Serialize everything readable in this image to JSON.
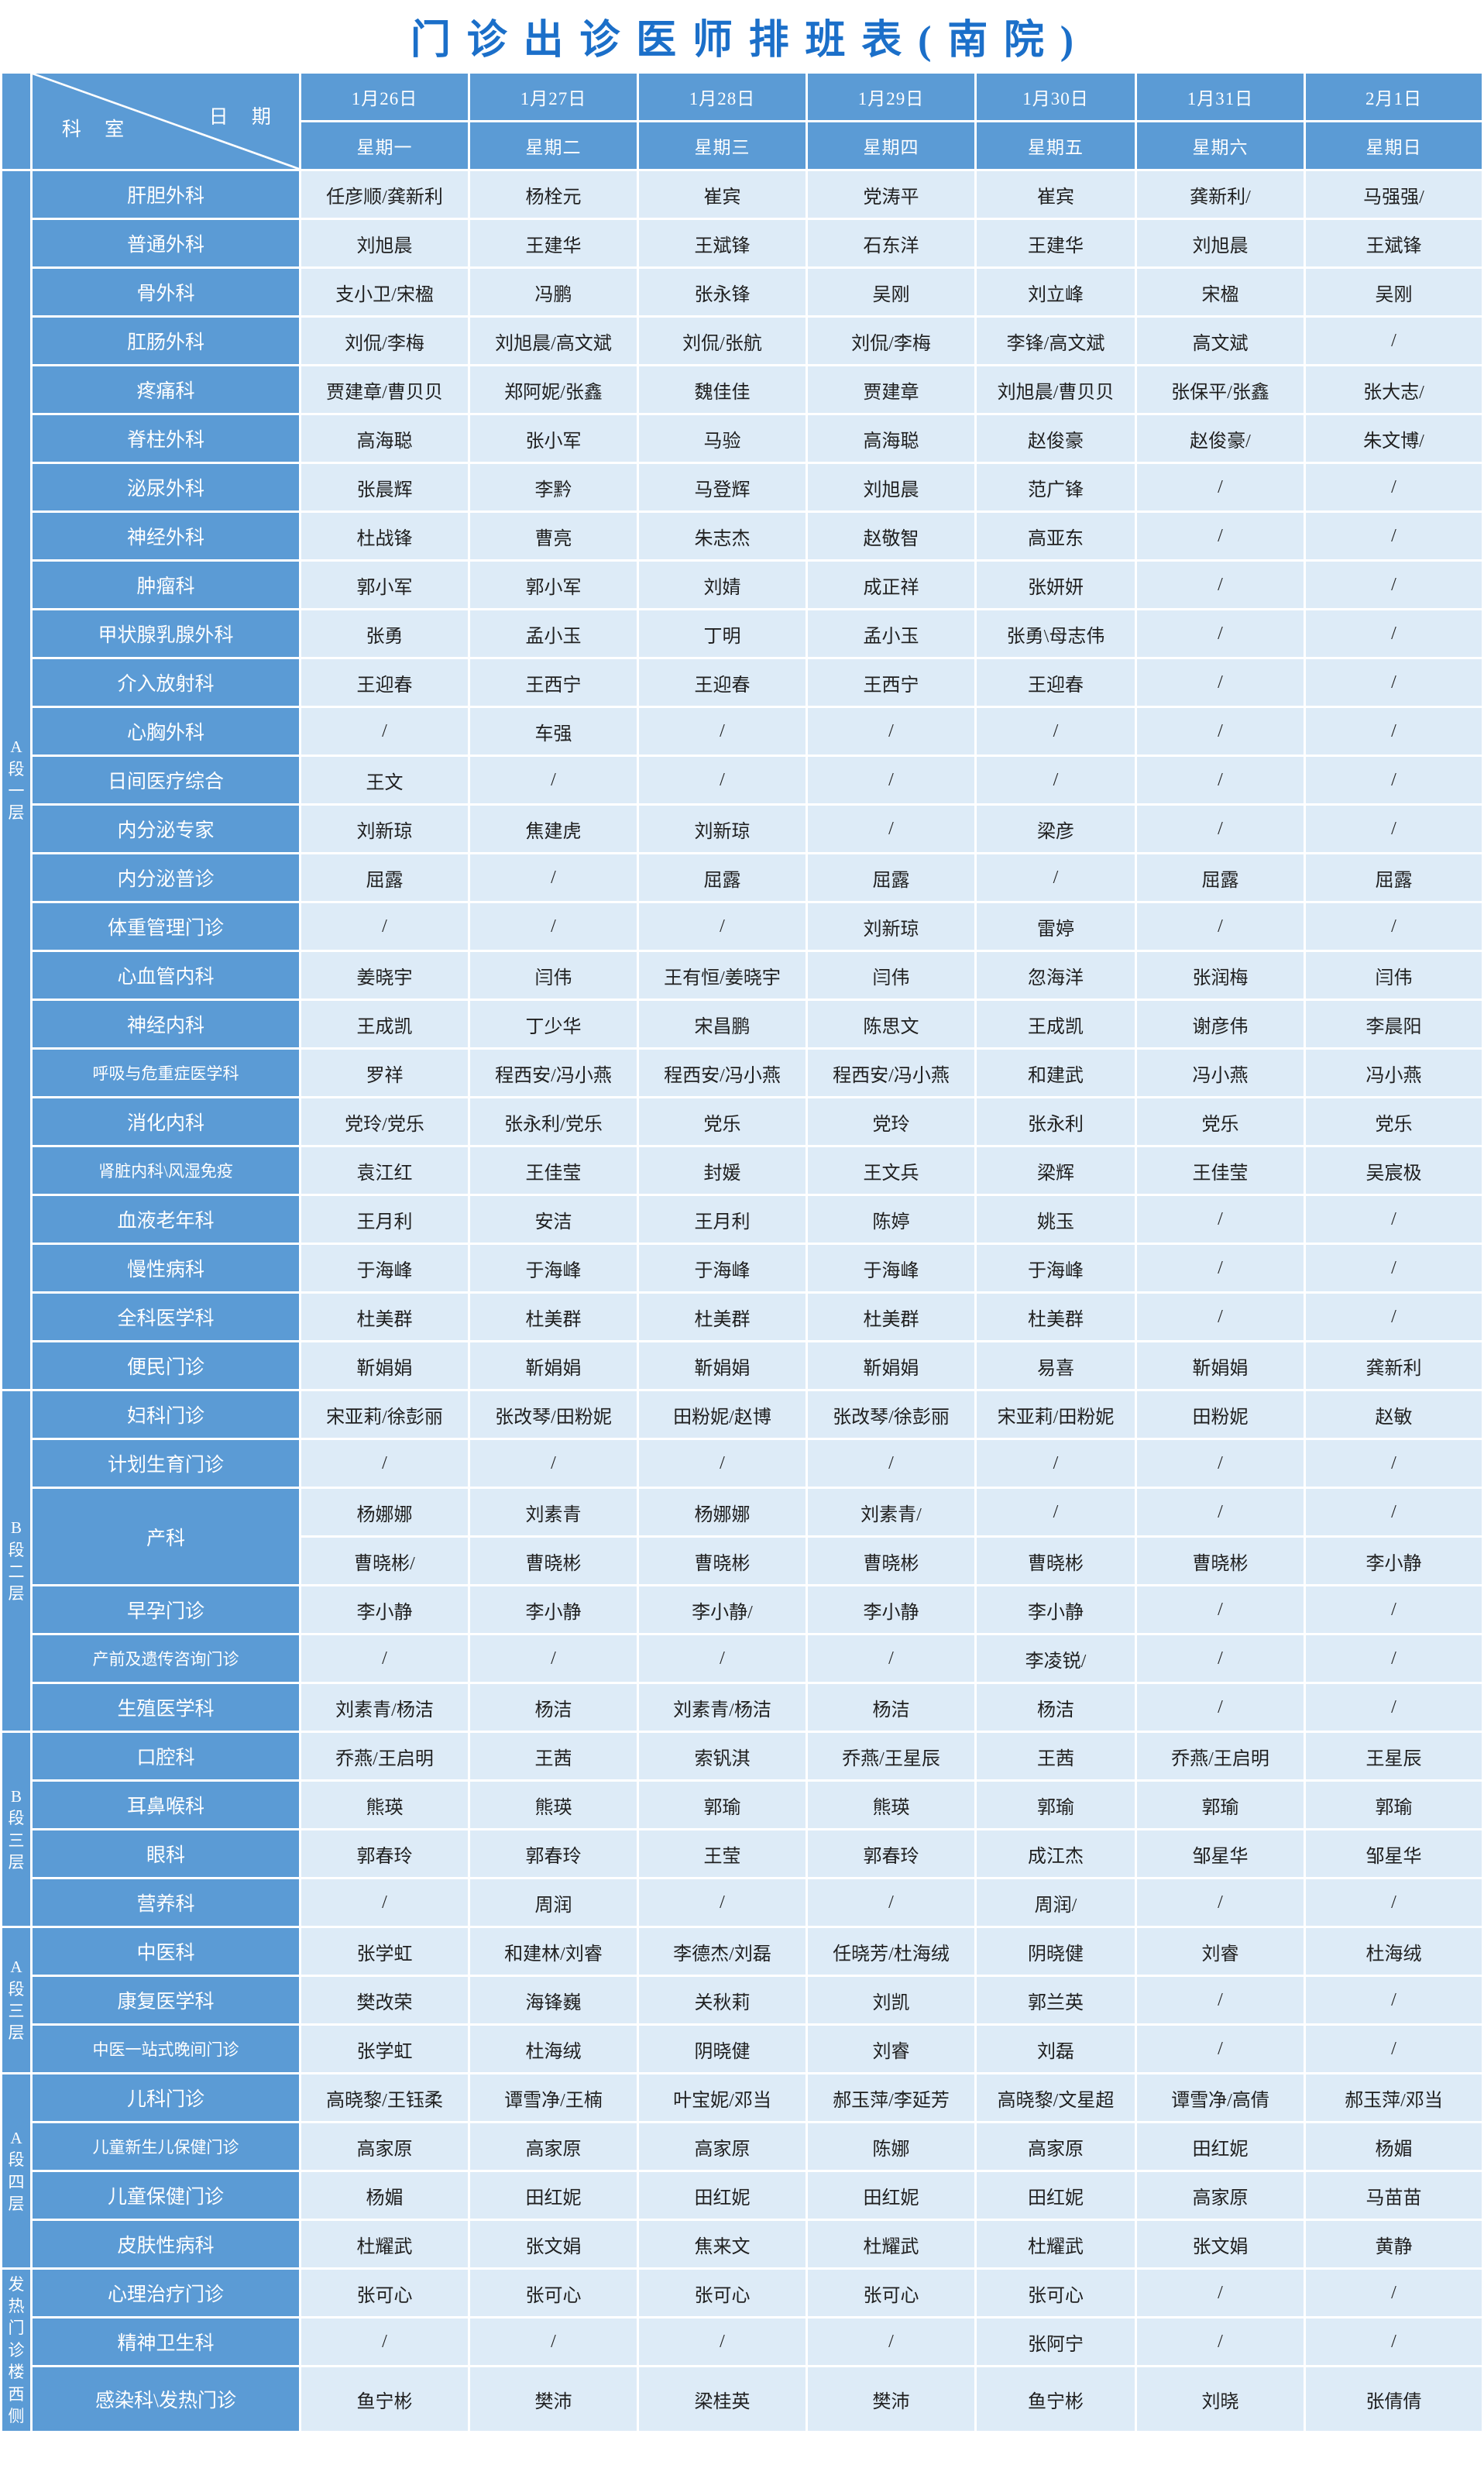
{
  "title": "门诊出诊医师排班表(南院)",
  "colors": {
    "header_blue": "#5b9bd5",
    "cell_light_blue": "#ddebf7",
    "title_blue": "#1b6fc9",
    "grid_white": "#ffffff",
    "text_dark": "#1f1f1f"
  },
  "corner": {
    "left_label": "科 室",
    "right_label": "日 期"
  },
  "columns": [
    {
      "date": "1月26日",
      "weekday": "星期一"
    },
    {
      "date": "1月27日",
      "weekday": "星期二"
    },
    {
      "date": "1月28日",
      "weekday": "星期三"
    },
    {
      "date": "1月29日",
      "weekday": "星期四"
    },
    {
      "date": "1月30日",
      "weekday": "星期五"
    },
    {
      "date": "1月31日",
      "weekday": "星期六"
    },
    {
      "date": "2月1日",
      "weekday": "星期日"
    }
  ],
  "groups": [
    {
      "label": "A段\n一层",
      "rows": [
        {
          "dept": "肝胆外科",
          "cells": [
            "任彦顺/龚新利",
            "杨栓元",
            "崔宾",
            "党涛平",
            "崔宾",
            "龚新利/",
            "马强强/"
          ]
        },
        {
          "dept": "普通外科",
          "cells": [
            "刘旭晨",
            "王建华",
            "王斌锋",
            "石东洋",
            "王建华",
            "刘旭晨",
            "王斌锋"
          ]
        },
        {
          "dept": "骨外科",
          "cells": [
            "支小卫/宋楹",
            "冯鹏",
            "张永锋",
            "吴刚",
            "刘立峰",
            "宋楹",
            "吴刚"
          ]
        },
        {
          "dept": "肛肠外科",
          "cells": [
            "刘侃/李梅",
            "刘旭晨/高文斌",
            "刘侃/张航",
            "刘侃/李梅",
            "李锋/高文斌",
            "高文斌",
            "/"
          ]
        },
        {
          "dept": "疼痛科",
          "cells": [
            "贾建章/曹贝贝",
            "郑阿妮/张鑫",
            "魏佳佳",
            "贾建章",
            "刘旭晨/曹贝贝",
            "张保平/张鑫",
            "张大志/"
          ]
        },
        {
          "dept": "脊柱外科",
          "cells": [
            "高海聪",
            "张小军",
            "马验",
            "高海聪",
            "赵俊豪",
            "赵俊豪/",
            "朱文博/"
          ]
        },
        {
          "dept": "泌尿外科",
          "cells": [
            "张晨辉",
            "李黔",
            "马登辉",
            "刘旭晨",
            "范广锋",
            "/",
            "/"
          ]
        },
        {
          "dept": "神经外科",
          "cells": [
            "杜战锋",
            "曹亮",
            "朱志杰",
            "赵敬智",
            "高亚东",
            "/",
            "/"
          ]
        },
        {
          "dept": "肿瘤科",
          "cells": [
            "郭小军",
            "郭小军",
            "刘婧",
            "成正祥",
            "张妍妍",
            "/",
            "/"
          ]
        },
        {
          "dept": "甲状腺乳腺外科",
          "cells": [
            "张勇",
            "孟小玉",
            "丁明",
            "孟小玉",
            "张勇\\母志伟",
            "/",
            "/"
          ]
        },
        {
          "dept": "介入放射科",
          "cells": [
            "王迎春",
            "王西宁",
            "王迎春",
            "王西宁",
            "王迎春",
            "/",
            "/"
          ]
        },
        {
          "dept": "心胸外科",
          "cells": [
            "/",
            "车强",
            "/",
            "/",
            "/",
            "/",
            "/"
          ]
        },
        {
          "dept": "日间医疗综合",
          "cells": [
            "王文",
            "/",
            "/",
            "/",
            "/",
            "/",
            "/"
          ]
        },
        {
          "dept": "内分泌专家",
          "cells": [
            "刘新琼",
            "焦建虎",
            "刘新琼",
            "/",
            "梁彦",
            "/",
            "/"
          ]
        },
        {
          "dept": "内分泌普诊",
          "cells": [
            "屈露",
            "/",
            "屈露",
            "屈露",
            "/",
            "屈露",
            "屈露"
          ]
        },
        {
          "dept": "体重管理门诊",
          "cells": [
            "/",
            "/",
            "/",
            "刘新琼",
            "雷婷",
            "/",
            "/"
          ]
        },
        {
          "dept": "心血管内科",
          "cells": [
            "姜晓宇",
            "闫伟",
            "王有恒/姜晓宇",
            "闫伟",
            "忽海洋",
            "张润梅",
            "闫伟"
          ]
        },
        {
          "dept": "神经内科",
          "cells": [
            "王成凯",
            "丁少华",
            "宋昌鹏",
            "陈思文",
            "王成凯",
            "谢彦伟",
            "李晨阳"
          ]
        },
        {
          "dept": "呼吸与危重症医学科",
          "cells": [
            "罗祥",
            "程西安/冯小燕",
            "程西安/冯小燕",
            "程西安/冯小燕",
            "和建武",
            "冯小燕",
            "冯小燕"
          ]
        },
        {
          "dept": "消化内科",
          "cells": [
            "党玲/党乐",
            "张永利/党乐",
            "党乐",
            "党玲",
            "张永利",
            "党乐",
            "党乐"
          ]
        },
        {
          "dept": "肾脏内科\\风湿免疫",
          "cells": [
            "袁江红",
            "王佳莹",
            "封媛",
            "王文兵",
            "梁辉",
            "王佳莹",
            "吴宸极"
          ]
        },
        {
          "dept": "血液老年科",
          "cells": [
            "王月利",
            "安洁",
            "王月利",
            "陈婷",
            "姚玉",
            "/",
            "/"
          ]
        },
        {
          "dept": "慢性病科",
          "cells": [
            "于海峰",
            "于海峰",
            "于海峰",
            "于海峰",
            "于海峰",
            "/",
            "/"
          ]
        },
        {
          "dept": "全科医学科",
          "cells": [
            "杜美群",
            "杜美群",
            "杜美群",
            "杜美群",
            "杜美群",
            "/",
            "/"
          ]
        },
        {
          "dept": "便民门诊",
          "cells": [
            "靳娟娟",
            "靳娟娟",
            "靳娟娟",
            "靳娟娟",
            "易喜",
            "靳娟娟",
            "龚新利"
          ]
        }
      ]
    },
    {
      "label": "B段\n二层",
      "rows": [
        {
          "dept": "妇科门诊",
          "cells": [
            "宋亚莉/徐彭丽",
            "张改琴/田粉妮",
            "田粉妮/赵博",
            "张改琴/徐彭丽",
            "宋亚莉/田粉妮",
            "田粉妮",
            "赵敏"
          ]
        },
        {
          "dept": "计划生育门诊",
          "cells": [
            "/",
            "/",
            "/",
            "/",
            "/",
            "/",
            "/"
          ]
        },
        {
          "dept": "产科",
          "subrows": [
            [
              "杨娜娜",
              "刘素青",
              "杨娜娜",
              "刘素青/",
              "/",
              "/",
              "/"
            ],
            [
              "曹晓彬/",
              "曹晓彬",
              "曹晓彬",
              "曹晓彬",
              "曹晓彬",
              "曹晓彬",
              "李小静"
            ]
          ]
        },
        {
          "dept": "早孕门诊",
          "cells": [
            "李小静",
            "李小静",
            "李小静/",
            "李小静",
            "李小静",
            "/",
            "/"
          ]
        },
        {
          "dept": "产前及遗传咨询门诊",
          "cells": [
            "/",
            "/",
            "/",
            "/",
            "李凌锐/",
            "/",
            "/"
          ]
        },
        {
          "dept": "生殖医学科",
          "cells": [
            "刘素青/杨洁",
            "杨洁",
            "刘素青/杨洁",
            "杨洁",
            "杨洁",
            "/",
            "/"
          ]
        }
      ]
    },
    {
      "label": "B段\n三层",
      "rows": [
        {
          "dept": "口腔科",
          "cells": [
            "乔燕/王启明",
            "王茜",
            "索钒淇",
            "乔燕/王星辰",
            "王茜",
            "乔燕/王启明",
            "王星辰"
          ]
        },
        {
          "dept": "耳鼻喉科",
          "cells": [
            "熊瑛",
            "熊瑛",
            "郭瑜",
            "熊瑛",
            "郭瑜",
            "郭瑜",
            "郭瑜"
          ]
        },
        {
          "dept": "眼科",
          "cells": [
            "郭春玲",
            "郭春玲",
            "王莹",
            "郭春玲",
            "成江杰",
            "邹星华",
            "邹星华"
          ]
        },
        {
          "dept": "营养科",
          "cells": [
            "/",
            "周润",
            "/",
            "/",
            "周润/",
            "/",
            "/"
          ]
        }
      ]
    },
    {
      "label": "A段\n三层",
      "rows": [
        {
          "dept": "中医科",
          "cells": [
            "张学虹",
            "和建林/刘睿",
            "李德杰/刘磊",
            "任晓芳/杜海绒",
            "阴晓健",
            "刘睿",
            "杜海绒"
          ]
        },
        {
          "dept": "康复医学科",
          "cells": [
            "樊改荣",
            "海锋巍",
            "关秋莉",
            "刘凯",
            "郭兰英",
            "/",
            "/"
          ]
        },
        {
          "dept": "中医一站式晚间门诊",
          "cells": [
            "张学虹",
            "杜海绒",
            "阴晓健",
            "刘睿",
            "刘磊",
            "/",
            "/"
          ]
        }
      ]
    },
    {
      "label": "A段\n四层",
      "rows": [
        {
          "dept": "儿科门诊",
          "cells": [
            "高晓黎/王钰柔",
            "谭雪净/王楠",
            "叶宝妮/邓当",
            "郝玉萍/李延芳",
            "高晓黎/文星超",
            "谭雪净/高倩",
            "郝玉萍/邓当"
          ]
        },
        {
          "dept": "儿童新生儿保健门诊",
          "cells": [
            "高家原",
            "高家原",
            "高家原",
            "陈娜",
            "高家原",
            "田红妮",
            "杨媚"
          ]
        },
        {
          "dept": "儿童保健门诊",
          "cells": [
            "杨媚",
            "田红妮",
            "田红妮",
            "田红妮",
            "田红妮",
            "高家原",
            "马苗苗"
          ]
        },
        {
          "dept": "皮肤性病科",
          "cells": [
            "杜耀武",
            "张文娟",
            "焦来文",
            "杜耀武",
            "杜耀武",
            "张文娟",
            "黄静"
          ]
        }
      ]
    },
    {
      "label": "发热\n门诊\n楼西\n侧",
      "rows": [
        {
          "dept": "心理治疗门诊",
          "cells": [
            "张可心",
            "张可心",
            "张可心",
            "张可心",
            "张可心",
            "/",
            "/"
          ]
        },
        {
          "dept": "精神卫生科",
          "cells": [
            "/",
            "/",
            "/",
            "/",
            "张阿宁",
            "/",
            "/"
          ]
        },
        {
          "dept": "感染科\\发热门诊",
          "cells": [
            "鱼宁彬",
            "樊沛",
            "梁桂英",
            "樊沛",
            "鱼宁彬",
            "刘晓",
            "张倩倩"
          ]
        }
      ]
    }
  ]
}
